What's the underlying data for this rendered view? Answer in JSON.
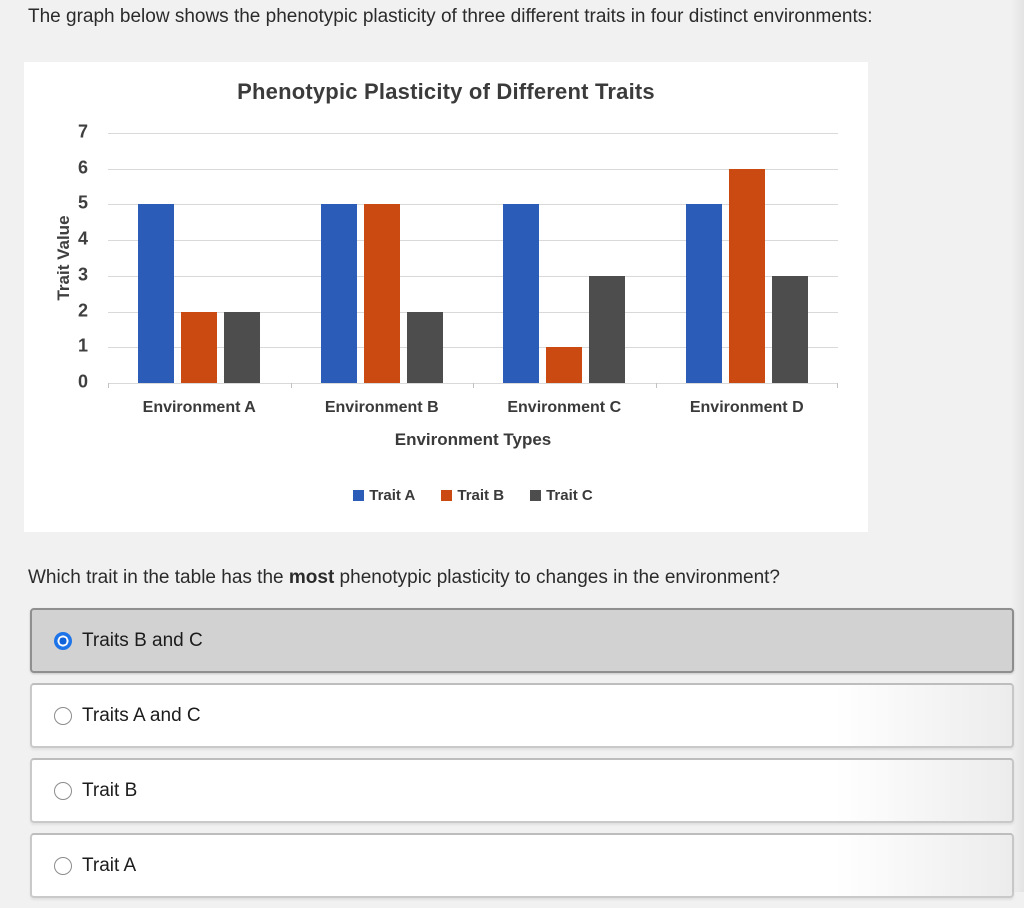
{
  "page": {
    "intro_text": "The graph below shows the phenotypic plasticity of three different traits in four distinct environments:",
    "question": {
      "prefix": "Which trait in the table has the ",
      "bold": "most",
      "suffix": " phenotypic plasticity to changes in the environment?"
    }
  },
  "chart_data": {
    "type": "bar",
    "title": "Phenotypic Plasticity of Different Traits",
    "categories": [
      "Environment A",
      "Environment B",
      "Environment C",
      "Environment D"
    ],
    "series": [
      {
        "name": "Trait A",
        "color": "#2b5cb7",
        "values": [
          5,
          5,
          5,
          5
        ]
      },
      {
        "name": "Trait B",
        "color": "#cb4a12",
        "values": [
          2,
          5,
          1,
          6
        ]
      },
      {
        "name": "Trait C",
        "color": "#4d4d4d",
        "values": [
          2,
          2,
          3,
          3
        ]
      }
    ],
    "xlabel": "Environment Types",
    "ylabel": "Trait Value",
    "ylim": [
      0,
      7
    ],
    "yticks": [
      0,
      1,
      2,
      3,
      4,
      5,
      6,
      7
    ],
    "grid": true,
    "legend_position": "bottom"
  },
  "options": [
    {
      "label": "Traits B and C",
      "selected": true
    },
    {
      "label": "Traits A and C",
      "selected": false
    },
    {
      "label": "Trait B",
      "selected": false
    },
    {
      "label": "Trait A",
      "selected": false
    }
  ]
}
